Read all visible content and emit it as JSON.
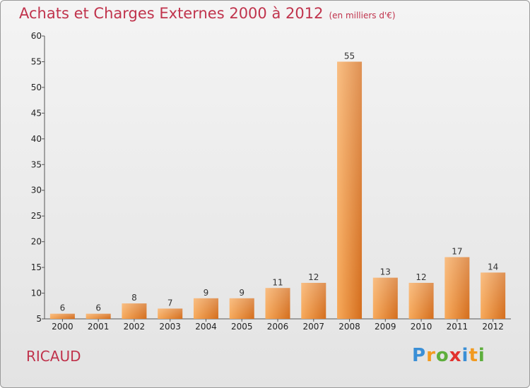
{
  "header": {
    "title": "Achats et Charges Externes 2000 à 2012",
    "unit": "(en milliers d'€)"
  },
  "commune": "RICAUD",
  "logo": {
    "letters": [
      "P",
      "r",
      "o",
      "x",
      "i",
      "t",
      "i"
    ]
  },
  "colors": {
    "title": "#c0334c",
    "bar_light": "#f7a95a",
    "bar_dark": "#d46d1c"
  },
  "chart_data": {
    "type": "bar",
    "title": "Achats et Charges Externes 2000 à 2012",
    "subtitle": "(en milliers d'€)",
    "categories": [
      "2000",
      "2001",
      "2002",
      "2003",
      "2004",
      "2005",
      "2006",
      "2007",
      "2008",
      "2009",
      "2010",
      "2011",
      "2012"
    ],
    "values": [
      6,
      6,
      8,
      7,
      9,
      9,
      11,
      12,
      55,
      13,
      12,
      17,
      14
    ],
    "ylim": [
      5,
      60
    ],
    "yticks": [
      5,
      10,
      15,
      20,
      25,
      30,
      35,
      40,
      45,
      50,
      55,
      60
    ],
    "grid": false,
    "legend": "none"
  }
}
